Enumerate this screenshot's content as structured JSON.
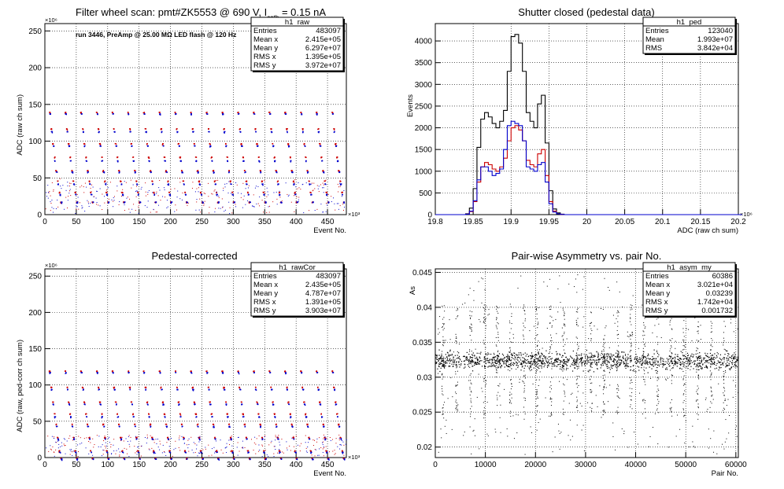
{
  "chart_data": [
    {
      "type": "scatter",
      "title": "Filter wheel scan: pmt#ZK5553 @   690 V, I",
      "title_sub": "cath",
      "title_tail": " = 0.15 nA",
      "annotation": "run 3446, PreAmp @ 25.00 MΩ LED flash @  120 Hz",
      "xlabel": "Event No.",
      "ylabel": "ADC (raw ch sum)",
      "x_exponent": "×10³",
      "y_exponent": "×10⁶",
      "xlim": [
        0,
        480
      ],
      "ylim": [
        0,
        260
      ],
      "x_ticks": [
        0,
        50,
        100,
        150,
        200,
        250,
        300,
        350,
        400,
        450
      ],
      "y_ticks": [
        0,
        50,
        100,
        150,
        200,
        250
      ],
      "grid": true,
      "series": [
        {
          "color": "#cc0000",
          "pattern": "periodic step levels",
          "levels": [
            140,
            118,
            98,
            80,
            62,
            48,
            33,
            20
          ]
        },
        {
          "color": "#0000cc",
          "pattern": "periodic step levels",
          "levels": [
            138,
            114,
            95,
            75,
            60,
            44,
            30,
            20
          ]
        }
      ],
      "stats": {
        "name": "h1_raw",
        "rows": [
          {
            "label": "Entries",
            "value": "483097"
          },
          {
            "label": "Mean x",
            "value": "2.415e+05"
          },
          {
            "label": "Mean y",
            "value": "6.297e+07"
          },
          {
            "label": "RMS x",
            "value": "1.395e+05"
          },
          {
            "label": "RMS y",
            "value": "3.972e+07"
          }
        ]
      }
    },
    {
      "type": "histogram",
      "title": "Shutter closed (pedestal data)",
      "xlabel": "ADC (raw ch sum)",
      "ylabel": "Events",
      "x_exponent": "×10⁶",
      "xlim": [
        19.8,
        20.2
      ],
      "ylim": [
        0,
        4400
      ],
      "x_ticks": [
        19.8,
        19.85,
        19.9,
        19.95,
        20,
        20.05,
        20.1,
        20.15,
        20.2
      ],
      "x_tick_labels": [
        "19.8",
        "19.85",
        "19.9",
        "19.95",
        "20",
        "20.05",
        "20.1",
        "20.15",
        "20.2"
      ],
      "y_ticks": [
        0,
        500,
        1000,
        1500,
        2000,
        2500,
        3000,
        3500,
        4000
      ],
      "grid": true,
      "bin_start": 19.8,
      "bin_width": 0.005,
      "series": [
        {
          "color": "#000000",
          "values": [
            0,
            0,
            0,
            0,
            0,
            0,
            0,
            0,
            20,
            150,
            600,
            1550,
            2200,
            2350,
            2250,
            2100,
            2000,
            2150,
            2400,
            3300,
            4100,
            4150,
            3950,
            3300,
            2350,
            2150,
            2000,
            2550,
            2750,
            1650,
            550,
            130,
            40,
            10,
            0,
            0,
            0,
            0,
            0,
            0,
            0,
            0,
            0,
            0,
            0,
            0,
            0,
            0,
            0,
            0,
            0,
            0,
            0,
            0,
            0,
            0,
            0,
            0,
            0,
            0,
            0,
            0,
            0,
            0,
            0,
            0,
            0,
            0,
            0,
            0,
            0,
            0,
            0,
            0,
            0,
            0,
            0,
            0,
            0,
            0
          ]
        },
        {
          "color": "#cc0000",
          "values": [
            0,
            0,
            0,
            0,
            0,
            0,
            0,
            0,
            10,
            70,
            300,
            750,
            1100,
            1200,
            1150,
            1050,
            1000,
            1100,
            1300,
            1700,
            2000,
            2050,
            1950,
            1700,
            1250,
            1150,
            1100,
            1400,
            1500,
            900,
            300,
            80,
            20,
            5,
            0,
            0,
            0,
            0,
            0,
            0,
            0,
            0,
            0,
            0,
            0,
            0,
            0,
            0,
            0,
            0,
            0,
            0,
            0,
            0,
            0,
            0,
            0,
            0,
            0,
            0,
            0,
            0,
            0,
            0,
            0,
            0,
            0,
            0,
            0,
            0,
            0,
            0,
            0,
            0,
            0,
            0,
            0,
            0,
            0,
            0
          ]
        },
        {
          "color": "#0000cc",
          "values": [
            0,
            0,
            0,
            0,
            0,
            0,
            0,
            0,
            10,
            80,
            320,
            800,
            1100,
            1100,
            1000,
            900,
            950,
            1050,
            1500,
            2050,
            2150,
            2100,
            2050,
            1700,
            1100,
            1050,
            1000,
            1150,
            1200,
            750,
            250,
            60,
            20,
            5,
            0,
            0,
            0,
            0,
            0,
            0,
            0,
            0,
            0,
            0,
            0,
            0,
            0,
            0,
            0,
            0,
            0,
            0,
            0,
            0,
            0,
            0,
            0,
            0,
            0,
            0,
            0,
            0,
            0,
            0,
            0,
            0,
            0,
            0,
            0,
            0,
            0,
            0,
            0,
            0,
            0,
            0,
            0,
            0,
            0,
            0,
            0
          ]
        }
      ],
      "stats": {
        "name": "h1_ped",
        "rows": [
          {
            "label": "Entries",
            "value": "123040"
          },
          {
            "label": "Mean",
            "value": "1.993e+07"
          },
          {
            "label": "RMS",
            "value": "3.842e+04"
          }
        ]
      }
    },
    {
      "type": "scatter",
      "title": "Pedestal-corrected",
      "xlabel": "Event No.",
      "ylabel": "ADC (raw, ped-corr ch sum)",
      "x_exponent": "×10³",
      "y_exponent": "×10⁶",
      "xlim": [
        0,
        480
      ],
      "ylim": [
        0,
        260
      ],
      "x_ticks": [
        0,
        50,
        100,
        150,
        200,
        250,
        300,
        350,
        400,
        450
      ],
      "y_ticks": [
        0,
        50,
        100,
        150,
        200,
        250
      ],
      "grid": true,
      "series": [
        {
          "color": "#cc0000",
          "pattern": "periodic step levels",
          "levels": [
            120,
            98,
            78,
            62,
            48,
            30,
            12,
            2
          ]
        },
        {
          "color": "#0000cc",
          "pattern": "periodic step levels",
          "levels": [
            118,
            95,
            75,
            58,
            45,
            28,
            10,
            1
          ]
        }
      ],
      "stats": {
        "name": "h1_rawCor",
        "rows": [
          {
            "label": "Entries",
            "value": "483097"
          },
          {
            "label": "Mean x",
            "value": "2.435e+05"
          },
          {
            "label": "Mean y",
            "value": "4.787e+07"
          },
          {
            "label": "RMS x",
            "value": "1.391e+05"
          },
          {
            "label": "RMS y",
            "value": "3.903e+07"
          }
        ]
      }
    },
    {
      "type": "scatter",
      "title": "Pair-wise Asymmetry vs. pair No.",
      "xlabel": "Pair No.",
      "ylabel": "As",
      "xlim": [
        0,
        60500
      ],
      "ylim": [
        0.0185,
        0.0455
      ],
      "x_ticks": [
        0,
        10000,
        20000,
        30000,
        40000,
        50000,
        60000
      ],
      "y_ticks": [
        0.02,
        0.025,
        0.03,
        0.035,
        0.04,
        0.045
      ],
      "y_tick_labels": [
        "0.02",
        "0.025",
        "0.03",
        "0.035",
        "0.04",
        "0.045"
      ],
      "grid": true,
      "band_center": 0.0324,
      "spike_pairs": [
        1500,
        4200,
        7000,
        9800,
        12300,
        15000,
        17700,
        20300,
        23000,
        25600,
        28300,
        31000,
        33600,
        36300,
        39000,
        41600,
        44300,
        47000,
        49600,
        52300,
        55000,
        57600
      ],
      "series": [
        {
          "color": "#000000"
        }
      ],
      "stats": {
        "name": "h1_asym_my",
        "rows": [
          {
            "label": "Entries",
            "value": "60386"
          },
          {
            "label": "Mean x",
            "value": "3.021e+04"
          },
          {
            "label": "Mean y",
            "value": "0.03239"
          },
          {
            "label": "RMS x",
            "value": "1.742e+04"
          },
          {
            "label": "RMS y",
            "value": "0.001732"
          }
        ]
      }
    }
  ]
}
